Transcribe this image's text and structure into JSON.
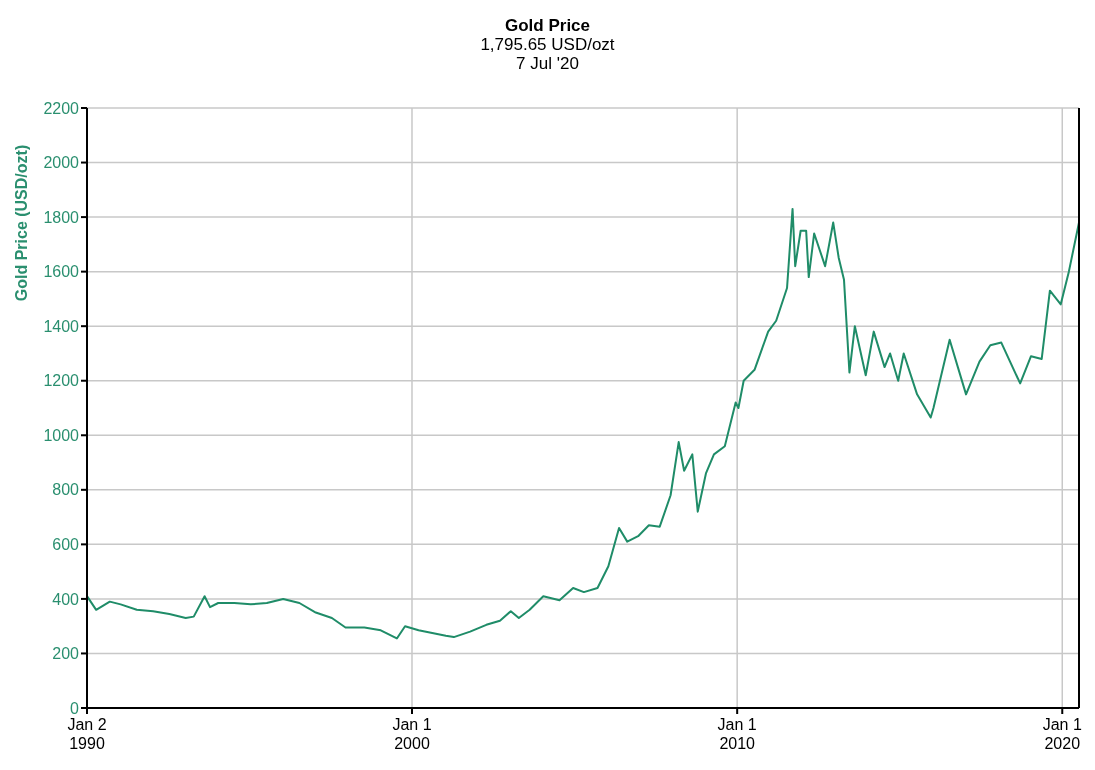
{
  "chart_data": {
    "type": "line",
    "title": "Gold Price",
    "subtitle": "1,795.65 USD/ozt\n7 Jul '20",
    "ylabel": "Gold Price (USD/ozt)",
    "x": [
      "1990-01-02",
      "1990-04",
      "1990-09",
      "1991-01",
      "1991-07",
      "1992-01",
      "1992-07",
      "1993-01",
      "1993-04",
      "1993-08",
      "1993-10",
      "1994-01",
      "1994-07",
      "1995-01",
      "1995-07",
      "1996-01",
      "1996-07",
      "1997-01",
      "1997-07",
      "1997-12",
      "1998-07",
      "1999-01",
      "1999-07",
      "1999-10",
      "2000-03",
      "2000-08",
      "2001-01",
      "2001-04",
      "2001-10",
      "2002-04",
      "2002-09",
      "2003-01",
      "2003-04",
      "2003-08",
      "2004-01",
      "2004-07",
      "2004-12",
      "2005-04",
      "2005-09",
      "2006-01",
      "2006-05",
      "2006-08",
      "2006-12",
      "2007-04",
      "2007-08",
      "2007-12",
      "2008-03",
      "2008-05",
      "2008-08",
      "2008-10",
      "2009-01",
      "2009-04",
      "2009-08",
      "2009-12",
      "2010-01",
      "2010-03",
      "2010-07",
      "2010-12",
      "2011-03",
      "2011-07",
      "2011-09",
      "2011-10",
      "2011-12",
      "2012-02",
      "2012-03",
      "2012-05",
      "2012-09",
      "2012-12",
      "2013-02",
      "2013-04",
      "2013-06",
      "2013-08",
      "2013-12",
      "2014-03",
      "2014-07",
      "2014-09",
      "2014-12",
      "2015-02",
      "2015-07",
      "2015-12",
      "2016-01",
      "2016-07",
      "2016-10",
      "2017-01",
      "2017-06",
      "2017-10",
      "2018-02",
      "2018-09",
      "2019-01",
      "2019-05",
      "2019-08",
      "2019-12",
      "2020-03",
      "2020-07-07"
    ],
    "series": [
      {
        "color": "#1f8c68",
        "values": [
          410,
          360,
          390,
          380,
          360,
          355,
          345,
          330,
          335,
          410,
          370,
          385,
          385,
          380,
          385,
          400,
          385,
          350,
          330,
          295,
          295,
          285,
          255,
          300,
          285,
          275,
          265,
          260,
          280,
          305,
          320,
          355,
          330,
          360,
          410,
          395,
          440,
          425,
          440,
          520,
          660,
          610,
          630,
          670,
          665,
          780,
          975,
          870,
          930,
          720,
          860,
          930,
          960,
          1120,
          1100,
          1200,
          1240,
          1380,
          1420,
          1540,
          1830,
          1620,
          1750,
          1750,
          1580,
          1740,
          1620,
          1780,
          1650,
          1570,
          1230,
          1400,
          1220,
          1380,
          1250,
          1300,
          1200,
          1300,
          1150,
          1065,
          1100,
          1350,
          1250,
          1150,
          1270,
          1330,
          1340,
          1190,
          1290,
          1280,
          1530,
          1480,
          1600,
          1780
        ]
      }
    ],
    "xlim": [
      "1990-01-02",
      "2020-07-07"
    ],
    "xticks": [
      {
        "value": "1990-01-02",
        "label": "Jan 2\n1990"
      },
      {
        "value": "2000-01-01",
        "label": "Jan 1\n2000"
      },
      {
        "value": "2010-01-01",
        "label": "Jan 1\n2010"
      },
      {
        "value": "2020-01-01",
        "label": "Jan 1\n2020"
      }
    ],
    "ylim": [
      0,
      2200
    ],
    "yticks": [
      0,
      200,
      400,
      600,
      800,
      1000,
      1200,
      1400,
      1600,
      1800,
      2000,
      2200
    ],
    "grid": true,
    "marker": "none",
    "line_style": "solid"
  }
}
